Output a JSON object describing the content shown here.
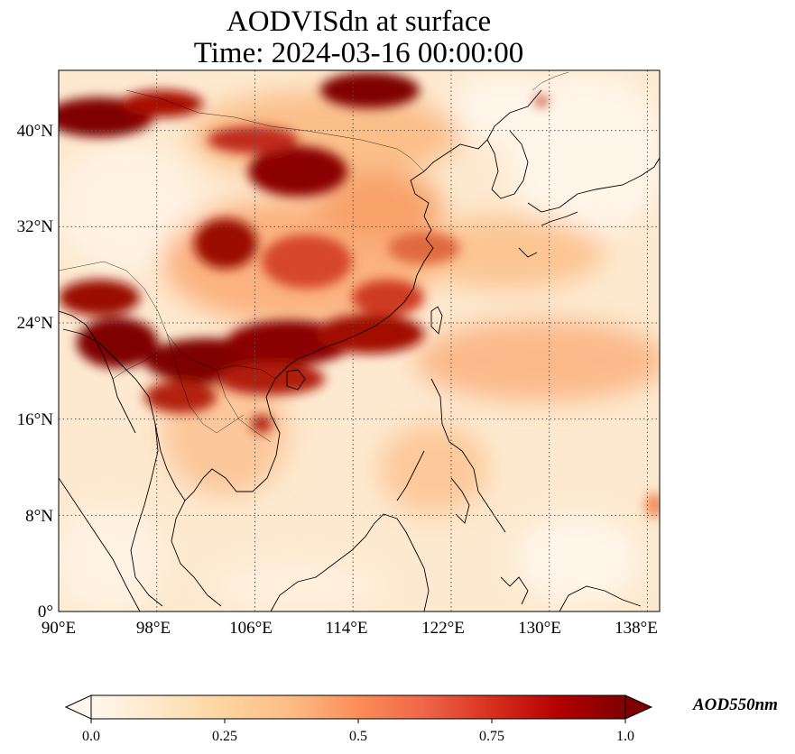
{
  "title": {
    "line1": "AODVISdn at surface",
    "line2": "Time: 2024-03-16 00:00:00"
  },
  "map": {
    "projection": "PlateCarree",
    "extent": {
      "lon": [
        90,
        139
      ],
      "lat": [
        0,
        45
      ]
    },
    "gridlines": "dotted",
    "lon_ticks": [
      90,
      98,
      106,
      114,
      122,
      130,
      138
    ],
    "lat_ticks": [
      0,
      8,
      16,
      24,
      32,
      40
    ],
    "lon_tick_labels": [
      "90°E",
      "98°E",
      "106°E",
      "114°E",
      "122°E",
      "130°E",
      "138°E"
    ],
    "lat_tick_labels": [
      "0°",
      "8°N",
      "16°N",
      "24°N",
      "32°N",
      "40°N"
    ],
    "colormap": "OrRd",
    "colors": {
      "low": "#fff7ec",
      "mid": "#fdbb84",
      "high": "#7f0000"
    },
    "high_aod_regions": [
      "Northern China / Inner Mongolia",
      "Sichuan Basin",
      "Southern China / Guangdong",
      "Northern Myanmar / Laos / Northern Thailand",
      "Northeast India / Bangladesh"
    ]
  },
  "colorbar": {
    "label": "AOD550nm",
    "ticks": [
      "0.0",
      "0.25",
      "0.5",
      "0.75",
      "1.0"
    ],
    "range": [
      0.0,
      1.0
    ],
    "extend": "both"
  }
}
